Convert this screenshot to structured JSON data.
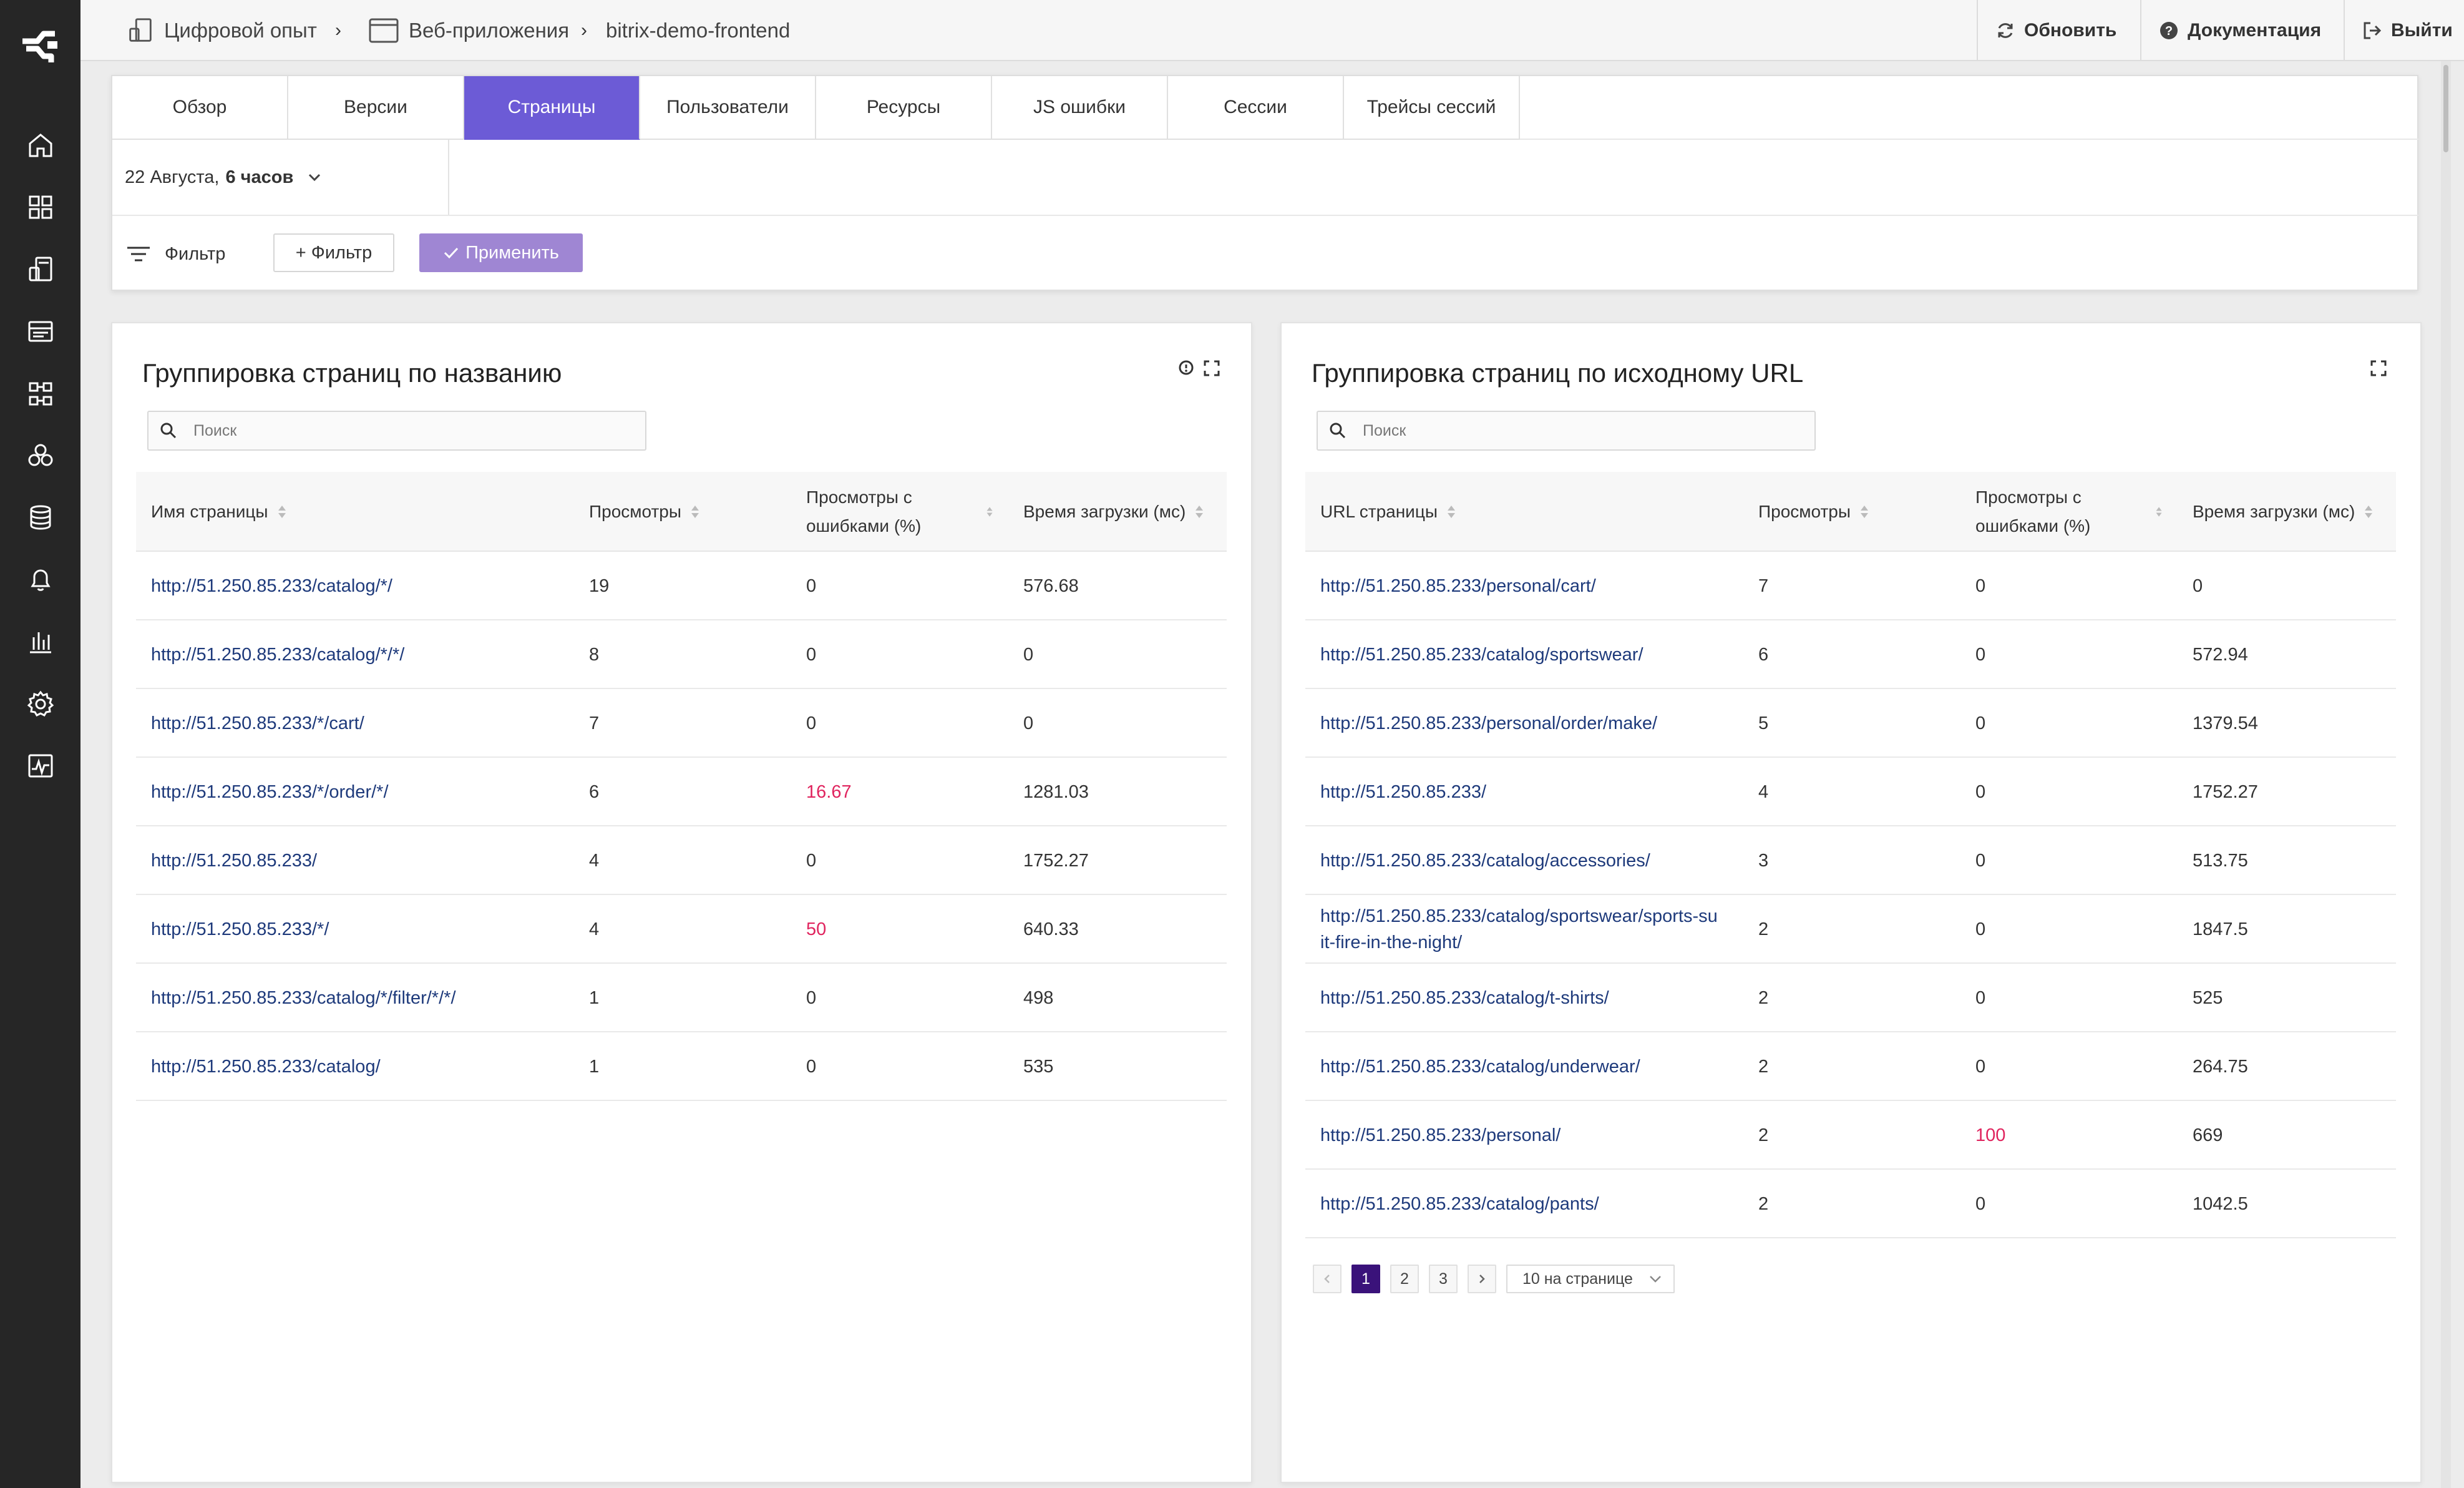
{
  "header": {
    "breadcrumb": [
      "Цифровой опыт",
      "Веб-приложения",
      "bitrix-demo-frontend"
    ],
    "refresh_label": "Обновить",
    "docs_label": "Документация",
    "logout_label": "Выйти"
  },
  "sidebar": {
    "icons": [
      "home-icon",
      "dashboard-grid-icon",
      "digital-experience-icon",
      "logs-icon",
      "integrations-icon",
      "services-icon",
      "database-icon",
      "alerts-bell-icon",
      "reports-chart-icon",
      "settings-gear-icon",
      "monitoring-pulse-icon"
    ]
  },
  "tabs": {
    "items": [
      "Обзор",
      "Версии",
      "Страницы",
      "Пользователи",
      "Ресурсы",
      "JS ошибки",
      "Сессии",
      "Трейсы сессий"
    ],
    "active_index": 2
  },
  "date_range": {
    "date": "22 Августа,",
    "period": "6 часов"
  },
  "filters": {
    "label": "Фильтр",
    "add_label": "+ Фильтр",
    "apply_label": "Применить"
  },
  "colors": {
    "accent": "#6c5bd6",
    "apply": "#9f86d3",
    "error": "#e0245e",
    "link": "#1e3a7b",
    "sidebar": "#262626"
  },
  "panel_left": {
    "title": "Группировка страниц по названию",
    "search_placeholder": "Поиск",
    "columns": [
      "Имя страницы",
      "Просмотры",
      "Просмотры с ошибками (%)",
      "Время загрузки (мс)"
    ],
    "rows": [
      [
        "http://51.250.85.233/catalog/*/",
        "19",
        "0",
        "576.68"
      ],
      [
        "http://51.250.85.233/catalog/*/*/",
        "8",
        "0",
        "0"
      ],
      [
        "http://51.250.85.233/*/cart/",
        "7",
        "0",
        "0"
      ],
      [
        "http://51.250.85.233/*/order/*/",
        "6",
        "16.67",
        "1281.03"
      ],
      [
        "http://51.250.85.233/",
        "4",
        "0",
        "1752.27"
      ],
      [
        "http://51.250.85.233/*/",
        "4",
        "50",
        "640.33"
      ],
      [
        "http://51.250.85.233/catalog/*/filter/*/*/",
        "1",
        "0",
        "498"
      ],
      [
        "http://51.250.85.233/catalog/",
        "1",
        "0",
        "535"
      ]
    ]
  },
  "panel_right": {
    "title": "Группировка страниц по исходному URL",
    "search_placeholder": "Поиск",
    "columns": [
      "URL страницы",
      "Просмотры",
      "Просмотры с ошибками (%)",
      "Время загрузки (мс)"
    ],
    "rows": [
      [
        "http://51.250.85.233/personal/cart/",
        "7",
        "0",
        "0"
      ],
      [
        "http://51.250.85.233/catalog/sportswear/",
        "6",
        "0",
        "572.94"
      ],
      [
        "http://51.250.85.233/personal/order/make/",
        "5",
        "0",
        "1379.54"
      ],
      [
        "http://51.250.85.233/",
        "4",
        "0",
        "1752.27"
      ],
      [
        "http://51.250.85.233/catalog/accessories/",
        "3",
        "0",
        "513.75"
      ],
      [
        "http://51.250.85.233/catalog/sportswear/sports-suit-fire-in-the-night/",
        "2",
        "0",
        "1847.5"
      ],
      [
        "http://51.250.85.233/catalog/t-shirts/",
        "2",
        "0",
        "525"
      ],
      [
        "http://51.250.85.233/catalog/underwear/",
        "2",
        "0",
        "264.75"
      ],
      [
        "http://51.250.85.233/personal/",
        "2",
        "100",
        "669"
      ],
      [
        "http://51.250.85.233/catalog/pants/",
        "2",
        "0",
        "1042.5"
      ]
    ],
    "pagination": {
      "pages": [
        "1",
        "2",
        "3"
      ],
      "current": "1",
      "page_size": "10 на странице"
    }
  }
}
